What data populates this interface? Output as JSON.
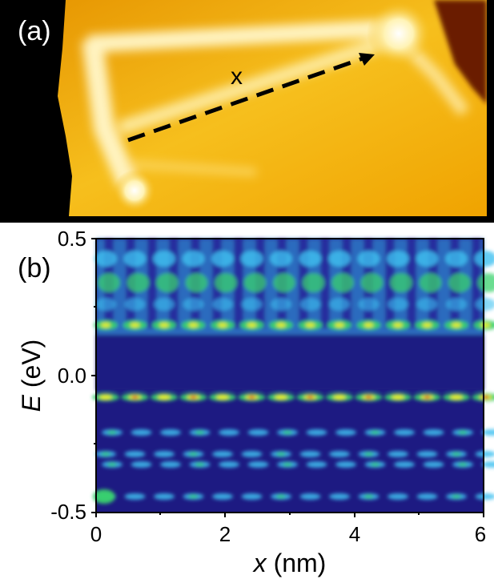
{
  "panel_a": {
    "label": "(a)",
    "arrow_label": "x",
    "colors": {
      "background": "#f2b200",
      "ridge": "#fff6cf",
      "dark_corner": "#6a1d00",
      "arrow": "#000000"
    }
  },
  "panel_b": {
    "label": "(b)",
    "y_axis": {
      "title_italic": "E",
      "title_unit": " (eV)",
      "ticks": [
        "0.5",
        "0.0",
        "-0.5"
      ]
    },
    "x_axis": {
      "title_italic": "x",
      "title_unit": " (nm)",
      "ticks": [
        "0",
        "2",
        "4",
        "6"
      ]
    },
    "colors": {
      "background": "#1d1a82",
      "band": "#3ec1f0",
      "band_mid": "#39d26d",
      "hot": "#f4ef21",
      "peak": "#e03120"
    }
  }
}
